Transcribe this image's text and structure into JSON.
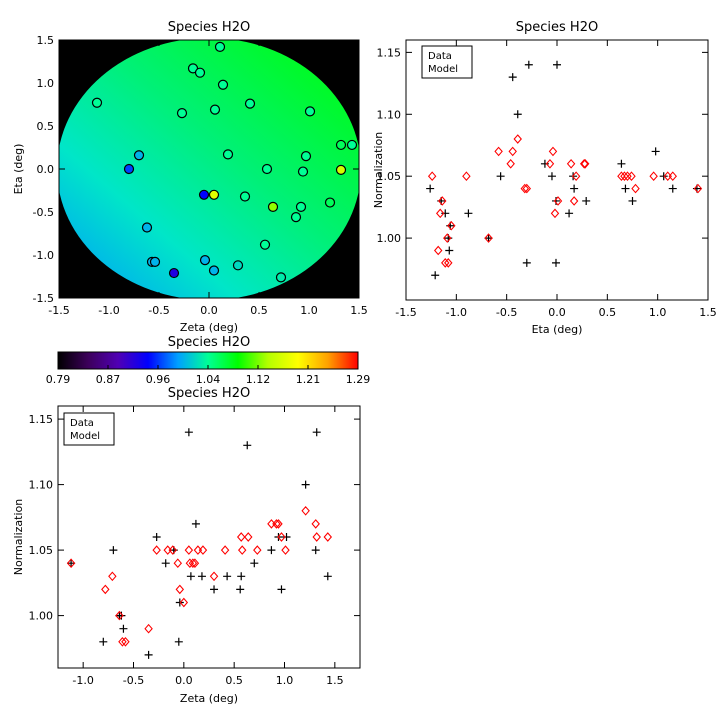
{
  "chart_data": [
    {
      "type": "heatmap",
      "title": "Species H2O",
      "xlabel": "Zeta (deg)",
      "ylabel": "Eta (deg)",
      "xlim": [
        -1.5,
        1.5
      ],
      "ylim": [
        -1.5,
        1.5
      ],
      "xticks": [
        "-1.5",
        "-1.0",
        "-0.5",
        "0.0",
        "0.5",
        "1.0",
        "1.5"
      ],
      "yticks": [
        "-1.5",
        "-1.0",
        "-0.5",
        "0.0",
        "0.5",
        "1.0",
        "1.5"
      ],
      "background_color": "#000000",
      "field_colors": [
        "#0096ff",
        "#00e6c8",
        "#00f07a",
        "#00ff00"
      ],
      "points": [
        {
          "x": -1.12,
          "y": 0.77,
          "value": 1.04
        },
        {
          "x": -0.16,
          "y": 1.17,
          "value": 1.04
        },
        {
          "x": -0.09,
          "y": 1.12,
          "value": 1.04
        },
        {
          "x": 0.11,
          "y": 1.42,
          "value": 1.04
        },
        {
          "x": 0.14,
          "y": 0.98,
          "value": 1.04
        },
        {
          "x": -0.27,
          "y": 0.65,
          "value": 1.04
        },
        {
          "x": 0.06,
          "y": 0.69,
          "value": 1.04
        },
        {
          "x": 0.41,
          "y": 0.76,
          "value": 1.04
        },
        {
          "x": 1.01,
          "y": 0.67,
          "value": 1.04
        },
        {
          "x": -0.7,
          "y": 0.16,
          "value": 1.0
        },
        {
          "x": -0.8,
          "y": 0.0,
          "value": 0.96
        },
        {
          "x": 0.19,
          "y": 0.17,
          "value": 1.04
        },
        {
          "x": 0.97,
          "y": 0.15,
          "value": 1.04
        },
        {
          "x": 1.32,
          "y": 0.28,
          "value": 1.06
        },
        {
          "x": 1.43,
          "y": 0.28,
          "value": 1.04
        },
        {
          "x": 0.58,
          "y": 0.0,
          "value": 1.04
        },
        {
          "x": 0.94,
          "y": -0.03,
          "value": 1.04
        },
        {
          "x": 1.32,
          "y": -0.01,
          "value": 1.16
        },
        {
          "x": -0.05,
          "y": -0.3,
          "value": 0.94
        },
        {
          "x": 0.05,
          "y": -0.3,
          "value": 1.17
        },
        {
          "x": 0.36,
          "y": -0.32,
          "value": 1.04
        },
        {
          "x": 0.64,
          "y": -0.44,
          "value": 1.13
        },
        {
          "x": 0.92,
          "y": -0.44,
          "value": 1.04
        },
        {
          "x": 0.87,
          "y": -0.56,
          "value": 1.04
        },
        {
          "x": 1.21,
          "y": -0.39,
          "value": 1.06
        },
        {
          "x": -0.62,
          "y": -0.68,
          "value": 1.0
        },
        {
          "x": -0.57,
          "y": -1.08,
          "value": 1.0
        },
        {
          "x": -0.54,
          "y": -1.08,
          "value": 1.0
        },
        {
          "x": -0.35,
          "y": -1.21,
          "value": 0.92
        },
        {
          "x": -0.04,
          "y": -1.06,
          "value": 1.0
        },
        {
          "x": 0.05,
          "y": -1.18,
          "value": 1.0
        },
        {
          "x": 0.29,
          "y": -1.12,
          "value": 1.02
        },
        {
          "x": 0.56,
          "y": -0.88,
          "value": 1.04
        },
        {
          "x": 0.72,
          "y": -1.26,
          "value": 1.03
        }
      ]
    },
    {
      "type": "colorbar",
      "title": "Species H2O",
      "range": [
        0.79,
        1.29
      ],
      "tick_labels": [
        "0.79",
        "0.87",
        "0.96",
        "1.04",
        "1.12",
        "1.21",
        "1.29"
      ],
      "colors": [
        "#000000",
        "#3c005a",
        "#5000b4",
        "#0000ff",
        "#00a0ff",
        "#00ff96",
        "#00ff00",
        "#b4ff00",
        "#ffff00",
        "#ffa000",
        "#ff0000"
      ]
    },
    {
      "type": "scatter",
      "title": "Species H2O",
      "xlabel": "Eta (deg)",
      "ylabel": "Normalization",
      "xlim": [
        -1.5,
        1.5
      ],
      "ylim": [
        0.95,
        1.16
      ],
      "xticks": [
        "-1.5",
        "-1.0",
        "-0.5",
        "0.0",
        "0.5",
        "1.0",
        "1.5"
      ],
      "yticks": [
        "1.00",
        "1.05",
        "1.10",
        "1.15"
      ],
      "legend": {
        "position": "top-left",
        "entries": [
          {
            "label": "Data",
            "color": "#000000"
          },
          {
            "label": "Model",
            "color": "#ff0000"
          }
        ]
      },
      "series": [
        {
          "name": "Data",
          "marker": "plus",
          "color": "#000000",
          "points": [
            [
              -1.26,
              1.04
            ],
            [
              -1.21,
              0.97
            ],
            [
              -1.15,
              1.03
            ],
            [
              -1.11,
              1.02
            ],
            [
              -1.08,
              1.0
            ],
            [
              -1.07,
              0.99
            ],
            [
              -1.06,
              1.01
            ],
            [
              -0.88,
              1.02
            ],
            [
              -0.68,
              1.0
            ],
            [
              -0.56,
              1.05
            ],
            [
              -0.44,
              1.13
            ],
            [
              -0.39,
              1.1
            ],
            [
              -0.28,
              1.14
            ],
            [
              -0.3,
              0.98
            ],
            [
              -0.12,
              1.06
            ],
            [
              -0.05,
              1.05
            ],
            [
              0.0,
              1.14
            ],
            [
              -0.01,
              1.03
            ],
            [
              -0.01,
              0.98
            ],
            [
              0.12,
              1.02
            ],
            [
              0.16,
              1.05
            ],
            [
              0.17,
              1.04
            ],
            [
              0.29,
              1.03
            ],
            [
              0.64,
              1.06
            ],
            [
              0.68,
              1.04
            ],
            [
              0.75,
              1.03
            ],
            [
              0.98,
              1.07
            ],
            [
              1.06,
              1.05
            ],
            [
              1.15,
              1.04
            ],
            [
              1.39,
              1.04
            ]
          ]
        },
        {
          "name": "Model",
          "marker": "diamond",
          "color": "#ff0000",
          "points": [
            [
              -1.24,
              1.05
            ],
            [
              -1.18,
              0.99
            ],
            [
              -1.16,
              1.02
            ],
            [
              -1.14,
              1.03
            ],
            [
              -1.11,
              0.98
            ],
            [
              -1.08,
              0.98
            ],
            [
              -1.09,
              1.0
            ],
            [
              -1.05,
              1.01
            ],
            [
              -0.9,
              1.05
            ],
            [
              -0.68,
              1.0
            ],
            [
              -0.58,
              1.07
            ],
            [
              -0.46,
              1.06
            ],
            [
              -0.44,
              1.07
            ],
            [
              -0.39,
              1.08
            ],
            [
              -0.32,
              1.04
            ],
            [
              -0.3,
              1.04
            ],
            [
              -0.07,
              1.06
            ],
            [
              -0.04,
              1.07
            ],
            [
              -0.02,
              1.02
            ],
            [
              0.01,
              1.03
            ],
            [
              0.14,
              1.06
            ],
            [
              0.17,
              1.03
            ],
            [
              0.19,
              1.05
            ],
            [
              0.27,
              1.06
            ],
            [
              0.28,
              1.06
            ],
            [
              0.64,
              1.05
            ],
            [
              0.67,
              1.05
            ],
            [
              0.7,
              1.05
            ],
            [
              0.74,
              1.05
            ],
            [
              0.78,
              1.04
            ],
            [
              0.96,
              1.05
            ],
            [
              1.1,
              1.05
            ],
            [
              1.15,
              1.05
            ],
            [
              1.4,
              1.04
            ]
          ]
        }
      ]
    },
    {
      "type": "scatter",
      "title": "Species H2O",
      "xlabel": "Zeta (deg)",
      "ylabel": "Normalization",
      "xlim": [
        -1.25,
        1.75
      ],
      "ylim": [
        0.96,
        1.16
      ],
      "xticks": [
        "-1.0",
        "-0.5",
        "0.0",
        "0.5",
        "1.0",
        "1.5"
      ],
      "yticks": [
        "1.00",
        "1.05",
        "1.10",
        "1.15"
      ],
      "legend": {
        "position": "top-left",
        "entries": [
          {
            "label": "Data",
            "color": "#000000"
          },
          {
            "label": "Model",
            "color": "#ff0000"
          }
        ]
      },
      "series": [
        {
          "name": "Data",
          "marker": "plus",
          "color": "#000000",
          "points": [
            [
              -1.12,
              1.04
            ],
            [
              -0.8,
              0.98
            ],
            [
              -0.7,
              1.05
            ],
            [
              -0.64,
              1.0
            ],
            [
              -0.62,
              1.0
            ],
            [
              -0.6,
              0.99
            ],
            [
              -0.35,
              0.97
            ],
            [
              -0.27,
              1.06
            ],
            [
              -0.18,
              1.04
            ],
            [
              -0.1,
              1.05
            ],
            [
              -0.05,
              0.98
            ],
            [
              -0.04,
              1.01
            ],
            [
              0.05,
              1.14
            ],
            [
              0.07,
              1.03
            ],
            [
              0.12,
              1.07
            ],
            [
              0.18,
              1.03
            ],
            [
              0.3,
              1.02
            ],
            [
              0.43,
              1.03
            ],
            [
              0.56,
              1.02
            ],
            [
              0.57,
              1.03
            ],
            [
              0.63,
              1.13
            ],
            [
              0.7,
              1.04
            ],
            [
              0.87,
              1.05
            ],
            [
              0.94,
              1.06
            ],
            [
              0.97,
              1.02
            ],
            [
              1.02,
              1.06
            ],
            [
              1.21,
              1.1
            ],
            [
              1.31,
              1.05
            ],
            [
              1.32,
              1.14
            ],
            [
              1.43,
              1.03
            ]
          ]
        },
        {
          "name": "Model",
          "marker": "diamond",
          "color": "#ff0000",
          "points": [
            [
              -1.12,
              1.04
            ],
            [
              -0.78,
              1.02
            ],
            [
              -0.71,
              1.03
            ],
            [
              -0.64,
              1.0
            ],
            [
              -0.61,
              0.98
            ],
            [
              -0.58,
              0.98
            ],
            [
              -0.35,
              0.99
            ],
            [
              -0.27,
              1.05
            ],
            [
              -0.16,
              1.05
            ],
            [
              -0.11,
              1.05
            ],
            [
              -0.06,
              1.04
            ],
            [
              -0.04,
              1.02
            ],
            [
              0.0,
              1.01
            ],
            [
              0.05,
              1.05
            ],
            [
              0.06,
              1.04
            ],
            [
              0.09,
              1.04
            ],
            [
              0.11,
              1.04
            ],
            [
              0.14,
              1.05
            ],
            [
              0.19,
              1.05
            ],
            [
              0.3,
              1.03
            ],
            [
              0.41,
              1.05
            ],
            [
              0.57,
              1.06
            ],
            [
              0.58,
              1.05
            ],
            [
              0.64,
              1.06
            ],
            [
              0.73,
              1.05
            ],
            [
              0.87,
              1.07
            ],
            [
              0.92,
              1.07
            ],
            [
              0.94,
              1.07
            ],
            [
              0.97,
              1.06
            ],
            [
              1.01,
              1.05
            ],
            [
              1.21,
              1.08
            ],
            [
              1.31,
              1.07
            ],
            [
              1.32,
              1.06
            ],
            [
              1.43,
              1.06
            ]
          ]
        }
      ]
    }
  ]
}
